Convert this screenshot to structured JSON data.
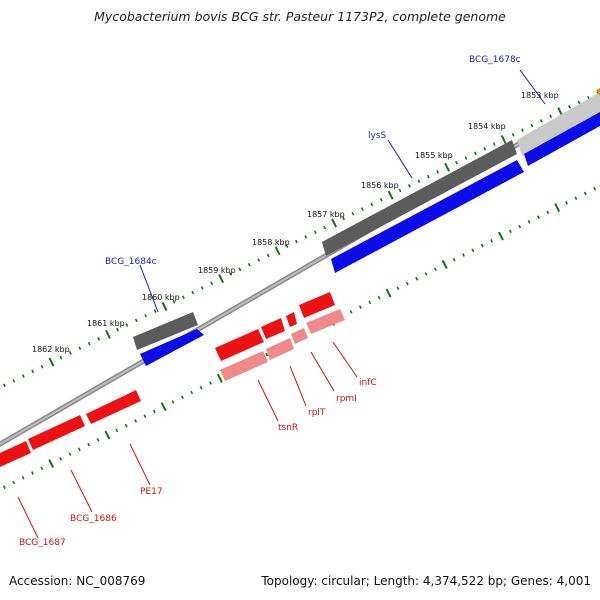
{
  "title": "Mycobacterium bovis BCG str. Pasteur 1173P2, complete genome",
  "footer": {
    "accession": "Accession: NC_008769",
    "summary": "Topology: circular; Length: 4,374,522 bp; Genes: 4,001"
  },
  "colors": {
    "forward_gene": "#0a0ae6",
    "forward_cds": "#606060",
    "reverse_gene": "#ee1111",
    "reverse_cds": "#f08a8a",
    "label_forward": "#1a1ab8",
    "label_reverse": "#cc1111",
    "tick": "#0a7a0a",
    "backbone": "#8a8a8a"
  },
  "ruler": [
    "1853 kbp",
    "1854 kbp",
    "1855 kbp",
    "1856 kbp",
    "1857 kbp",
    "1858 kbp",
    "1859 kbp",
    "1860 kbp",
    "1861 kbp",
    "1862 kbp"
  ],
  "labels_forward": [
    "BCG_1678c",
    "lysS",
    "BCG_1684c"
  ],
  "labels_reverse": [
    "infC",
    "rpmI",
    "rplT",
    "tsnR",
    "PE17",
    "BCG_1686",
    "BCG_1687"
  ]
}
